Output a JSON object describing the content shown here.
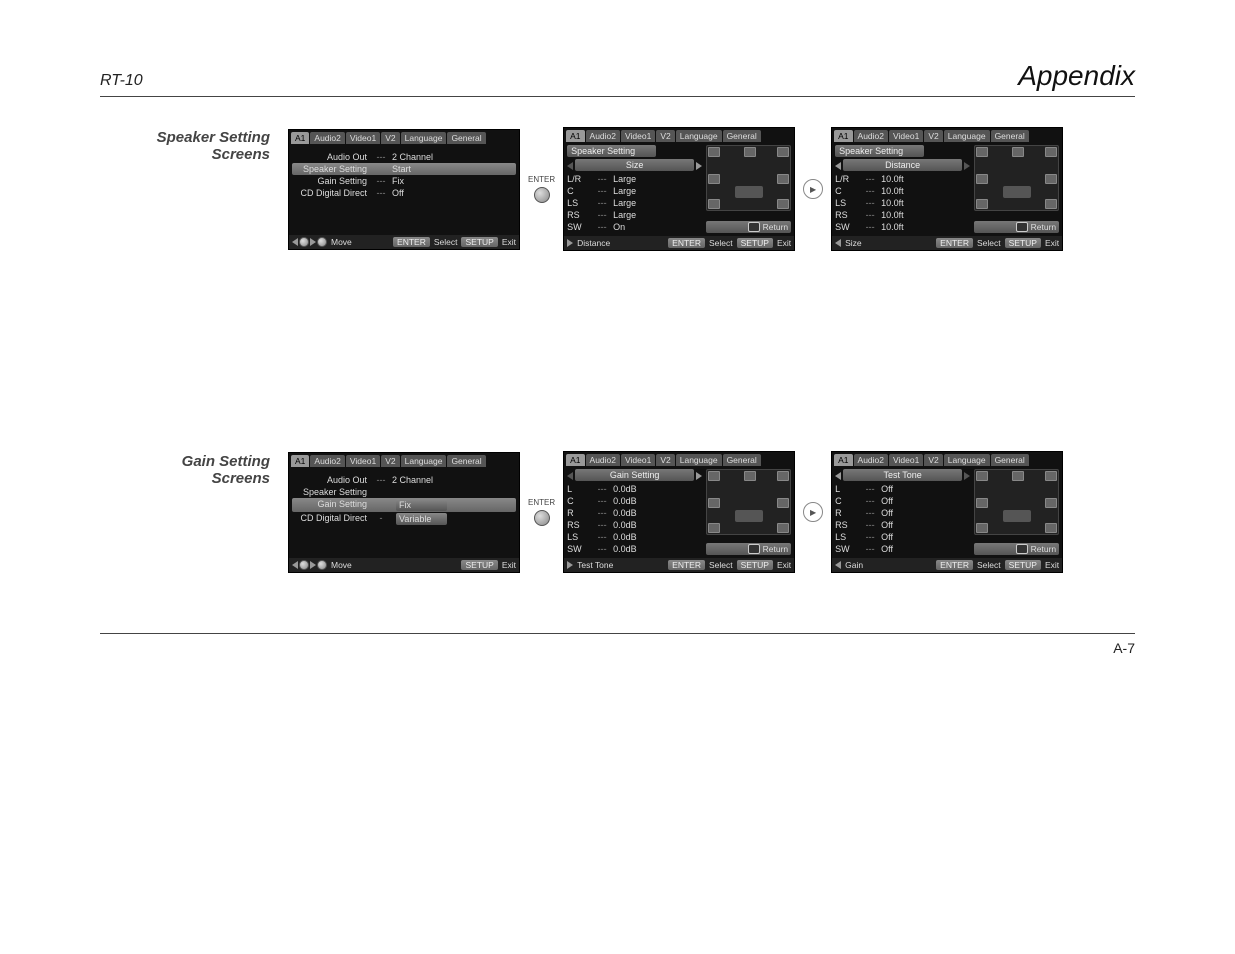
{
  "header": {
    "model": "RT-10",
    "title": "Appendix"
  },
  "footer_page": "A-7",
  "section1": {
    "label_line1": "Speaker Setting",
    "label_line2": "Screens"
  },
  "section2": {
    "label_line1": "Gain Setting",
    "label_line2": "Screens"
  },
  "connector_enter": "ENTER",
  "arrow_symbol": "▶",
  "tabs": [
    "A1",
    "Audio2",
    "Video1",
    "V2",
    "Language",
    "General"
  ],
  "footer_actions": {
    "move": "Move",
    "enter": "ENTER",
    "select": "Select",
    "setup": "SETUP",
    "exit": "Exit"
  },
  "return_label": "Return",
  "screenA1": {
    "lines": [
      {
        "label": "Audio Out",
        "sep": "---",
        "val": "2 Channel"
      },
      {
        "label": "Speaker Setting",
        "sep": "",
        "val": "Start",
        "hl": true
      },
      {
        "label": "Gain Setting",
        "sep": "---",
        "val": "Fix"
      },
      {
        "label": "CD Digital Direct",
        "sep": "---",
        "val": "Off"
      }
    ]
  },
  "screenA2": {
    "header1": "Speaker Setting",
    "header2": "Size",
    "nav_next": "Distance",
    "rows": [
      {
        "ch": "L/R",
        "val": "Large"
      },
      {
        "ch": "C",
        "val": "Large"
      },
      {
        "ch": "LS",
        "val": "Large"
      },
      {
        "ch": "RS",
        "val": "Large"
      },
      {
        "ch": "SW",
        "val": "On"
      }
    ]
  },
  "screenA3": {
    "header1": "Speaker Setting",
    "header2": "Distance",
    "nav_prev": "Size",
    "rows": [
      {
        "ch": "L/R",
        "val": "10.0ft"
      },
      {
        "ch": "C",
        "val": "10.0ft"
      },
      {
        "ch": "LS",
        "val": "10.0ft"
      },
      {
        "ch": "RS",
        "val": "10.0ft"
      },
      {
        "ch": "SW",
        "val": "10.0ft"
      }
    ]
  },
  "screenB1": {
    "lines": [
      {
        "label": "Audio Out",
        "sep": "---",
        "val": "2 Channel"
      },
      {
        "label": "Speaker Setting",
        "sep": "",
        "val": ""
      },
      {
        "label": "Gain Setting",
        "sep": "",
        "val": "Fix",
        "hl": true,
        "dropdown": true
      },
      {
        "label": "CD Digital Direct",
        "sep": "-",
        "val": "Variable",
        "dropdown_row2": true
      }
    ]
  },
  "screenB2": {
    "header1": "Gain Setting",
    "nav_next": "Test Tone",
    "rows": [
      {
        "ch": "L",
        "val": "0.0dB"
      },
      {
        "ch": "C",
        "val": "0.0dB"
      },
      {
        "ch": "R",
        "val": "0.0dB"
      },
      {
        "ch": "RS",
        "val": "0.0dB"
      },
      {
        "ch": "LS",
        "val": "0.0dB"
      },
      {
        "ch": "SW",
        "val": "0.0dB"
      }
    ]
  },
  "screenB3": {
    "header1": "Test Tone",
    "nav_prev": "Gain",
    "rows": [
      {
        "ch": "L",
        "val": "Off"
      },
      {
        "ch": "C",
        "val": "Off"
      },
      {
        "ch": "R",
        "val": "Off"
      },
      {
        "ch": "RS",
        "val": "Off"
      },
      {
        "ch": "LS",
        "val": "Off"
      },
      {
        "ch": "SW",
        "val": "Off"
      }
    ]
  }
}
